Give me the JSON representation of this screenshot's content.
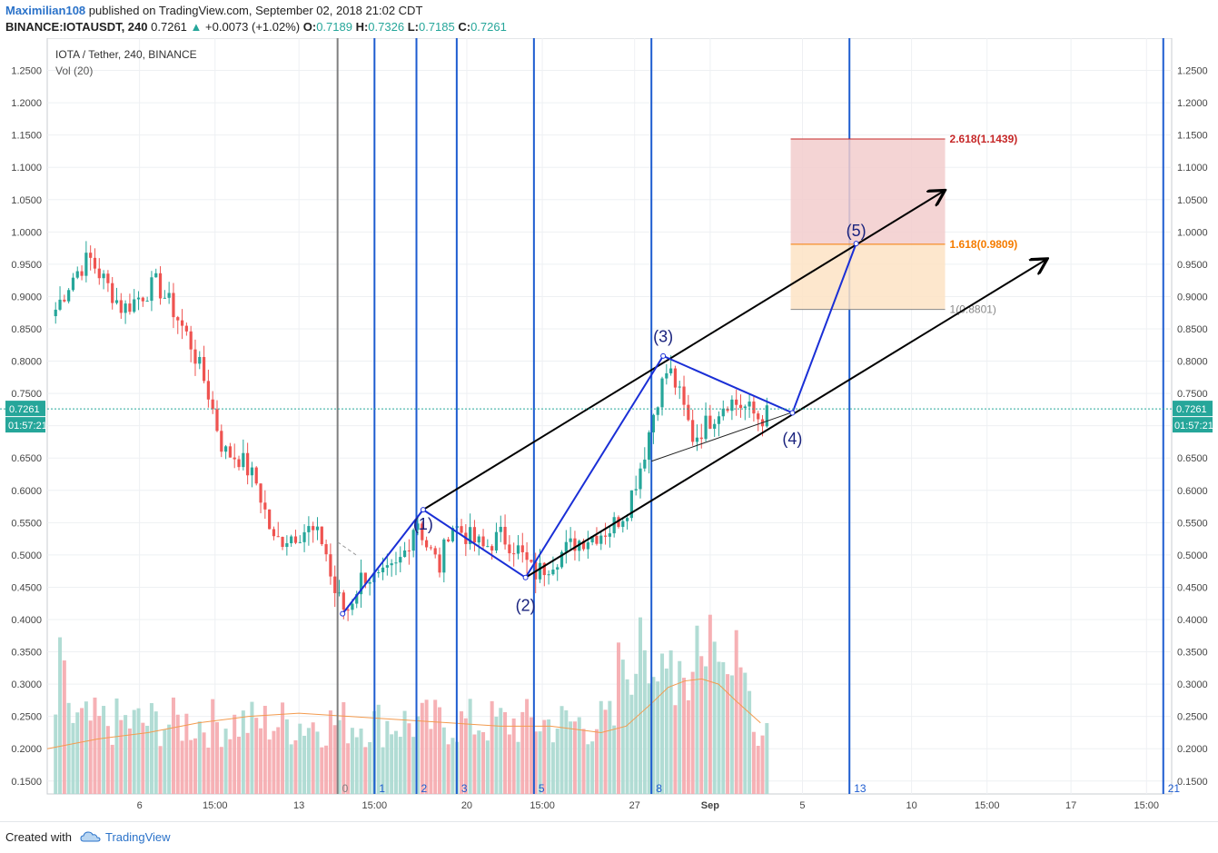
{
  "header": {
    "author": "Maximilian108",
    "published": "published on TradingView.com, September 02, 2018 21:02 CDT",
    "symbol": "BINANCE:IOTAUSDT, 240",
    "price": "0.7261",
    "change_arrow": "▲",
    "change": "+0.0073 (+1.02%)",
    "o_label": "O:",
    "o": "0.7189",
    "h_label": "H:",
    "h": "0.7326",
    "l_label": "L:",
    "l": "0.7185",
    "c_label": "C:",
    "c": "0.7261"
  },
  "footer": {
    "created": "Created with",
    "brand": "TradingView"
  },
  "colors": {
    "up": "#26a69a",
    "down": "#ef5350",
    "wave": "#1a2fd6",
    "vline": "#1d5cd0",
    "grid": "#eef0f3"
  },
  "chart_data": {
    "type": "candlestick",
    "title": "IOTA / Tether, 240, BINANCE",
    "subtitle": "Vol (20)",
    "ylim": [
      0.13,
      1.3
    ],
    "y_ticks": [
      "1.2500",
      "1.2000",
      "1.1500",
      "1.1000",
      "1.0500",
      "1.0000",
      "0.9500",
      "0.9000",
      "0.8500",
      "0.8000",
      "0.7500",
      "0.7000",
      "0.6500",
      "0.6000",
      "0.5500",
      "0.5000",
      "0.4500",
      "0.4000",
      "0.3500",
      "0.3000",
      "0.2500",
      "0.2000",
      "0.1500"
    ],
    "x_ticks": [
      "6",
      "15:00",
      "13",
      "15:00",
      "20",
      "15:00",
      "27",
      "Sep",
      "5",
      "10",
      "15:00",
      "17",
      "15:00"
    ],
    "x_tick_pos": [
      5.5,
      10,
      15,
      19.5,
      25,
      29.5,
      35,
      39.5,
      45,
      51.5,
      56,
      61,
      65.5
    ],
    "x_range": [
      0,
      67
    ],
    "price_line": 0.7261,
    "price_label": "0.7261",
    "countdown": "01:57:21",
    "anchors": [
      [
        0.5,
        0.88
      ],
      [
        1.5,
        0.93
      ],
      [
        2.5,
        0.96
      ],
      [
        3.5,
        0.92
      ],
      [
        4.5,
        0.88
      ],
      [
        5.5,
        0.9
      ],
      [
        6.5,
        0.92
      ],
      [
        7.5,
        0.88
      ],
      [
        8.5,
        0.83
      ],
      [
        9.5,
        0.76
      ],
      [
        10.5,
        0.66
      ],
      [
        11.5,
        0.65
      ],
      [
        12.5,
        0.61
      ],
      [
        13.5,
        0.52
      ],
      [
        14.5,
        0.53
      ],
      [
        15.5,
        0.54
      ],
      [
        16.5,
        0.52
      ],
      [
        17.0,
        0.45
      ],
      [
        17.8,
        0.41
      ],
      [
        18.8,
        0.47
      ],
      [
        19.8,
        0.46
      ],
      [
        20.8,
        0.48
      ],
      [
        21.4,
        0.51
      ],
      [
        22.0,
        0.56
      ],
      [
        22.5,
        0.52
      ],
      [
        23.4,
        0.48
      ],
      [
        24.0,
        0.55
      ],
      [
        25.0,
        0.53
      ],
      [
        26.0,
        0.51
      ],
      [
        27.0,
        0.53
      ],
      [
        28.0,
        0.51
      ],
      [
        29.0,
        0.47
      ],
      [
        29.6,
        0.48
      ],
      [
        30.5,
        0.5
      ],
      [
        31.5,
        0.52
      ],
      [
        32.5,
        0.53
      ],
      [
        33.5,
        0.54
      ],
      [
        34.5,
        0.57
      ],
      [
        35.5,
        0.65
      ],
      [
        36.3,
        0.74
      ],
      [
        37.0,
        0.79
      ],
      [
        37.5,
        0.76
      ],
      [
        38.5,
        0.68
      ],
      [
        39.5,
        0.71
      ],
      [
        40.5,
        0.74
      ],
      [
        41.5,
        0.73
      ],
      [
        42.5,
        0.71
      ],
      [
        43.0,
        0.72
      ]
    ],
    "volume_avg": [
      [
        0,
        0.2
      ],
      [
        3,
        0.215
      ],
      [
        6,
        0.225
      ],
      [
        9,
        0.24
      ],
      [
        12,
        0.25
      ],
      [
        15,
        0.255
      ],
      [
        18,
        0.25
      ],
      [
        21,
        0.245
      ],
      [
        24,
        0.24
      ],
      [
        27,
        0.235
      ],
      [
        30,
        0.235
      ],
      [
        33,
        0.225
      ],
      [
        34.5,
        0.235
      ],
      [
        36,
        0.27
      ],
      [
        37,
        0.295
      ],
      [
        38,
        0.305
      ],
      [
        39,
        0.308
      ],
      [
        40,
        0.3
      ],
      [
        41,
        0.275
      ],
      [
        42.5,
        0.24
      ]
    ],
    "fib_time_lines": [
      {
        "x": 17.3,
        "label": "0"
      },
      {
        "x": 19.5,
        "label": "1"
      },
      {
        "x": 22.0,
        "label": "2"
      },
      {
        "x": 24.4,
        "label": "3"
      },
      {
        "x": 29.0,
        "label": "5"
      },
      {
        "x": 36.0,
        "label": "8"
      },
      {
        "x": 47.8,
        "label": "13"
      },
      {
        "x": 66.5,
        "label": "21"
      }
    ],
    "fib_levels": [
      {
        "ratio_label": "2.618(1.1439)",
        "value": 1.1439,
        "color": "#c62828"
      },
      {
        "ratio_label": "1.618(0.9809)",
        "value": 0.9809,
        "color": "#f57c00"
      },
      {
        "ratio_label": "1(0.8801)",
        "value": 0.8801,
        "color": "#888888"
      }
    ],
    "fib_box_x": [
      44.3,
      53.5
    ],
    "waves": [
      {
        "label": "(1)",
        "x": 22.4,
        "y": 0.57,
        "label_dy": -0.022
      },
      {
        "label": "(2)",
        "x": 28.5,
        "y": 0.465,
        "label_dy": -0.043
      },
      {
        "label": "(3)",
        "x": 36.7,
        "y": 0.808,
        "label_dy": 0.03
      },
      {
        "label": "(4)",
        "x": 44.4,
        "y": 0.72,
        "label_dy": -0.04
      },
      {
        "label": "(5)",
        "x": 48.2,
        "y": 0.982,
        "label_dy": 0.02
      }
    ],
    "wave_start": [
      17.6,
      0.409
    ],
    "channel": [
      {
        "from": [
          22.4,
          0.57
        ],
        "to": [
          53.4,
          1.063
        ]
      },
      {
        "from": [
          28.5,
          0.465
        ],
        "to": [
          59.5,
          0.957
        ]
      }
    ],
    "triangle_lines": [
      {
        "from": [
          36.7,
          0.808
        ],
        "to": [
          44.4,
          0.72
        ]
      },
      {
        "from": [
          36.0,
          0.645
        ],
        "to": [
          44.3,
          0.72
        ]
      }
    ],
    "dash_line": {
      "from": [
        17.3,
        0.52
      ],
      "to": [
        18.4,
        0.5
      ]
    }
  }
}
